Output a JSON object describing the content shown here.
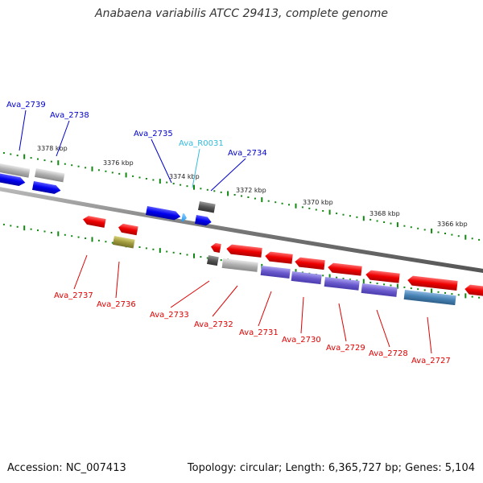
{
  "title": "Anabaena variabilis ATCC 29413, complete genome",
  "footer": {
    "accession": "Accession: NC_007413",
    "topology": "Topology: circular; Length: 6,365,727 bp; Genes: 5,104"
  },
  "colors": {
    "forward_gene": "#0000ee",
    "reverse_gene": "#ee0000",
    "label_forward": "#0000cc",
    "label_reverse": "#dd0000",
    "label_rna": "#33bbdd",
    "tick": "#118811",
    "backbone": "#888888",
    "gray_gene": "#aaaaaa",
    "purple_gene": "#6a5acd",
    "steelblue_gene": "#4682b4",
    "olive_gene": "#a09a3c",
    "dark_gene": "#555555",
    "rna_gene": "#33aaff"
  },
  "scale_labels": [
    "3378 kbp",
    "3376 kbp",
    "3374 kbp",
    "3372 kbp",
    "3370 kbp",
    "3368 kbp",
    "3366 kbp"
  ],
  "forward_labels": [
    "Ava_2739",
    "Ava_2738",
    "Ava_2735",
    "Ava_R0031",
    "Ava_2734"
  ],
  "reverse_labels": [
    "Ava_2737",
    "Ava_2736",
    "Ava_2733",
    "Ava_2732",
    "Ava_2731",
    "Ava_2730",
    "Ava_2729",
    "Ava_2728",
    "Ava_2727"
  ]
}
